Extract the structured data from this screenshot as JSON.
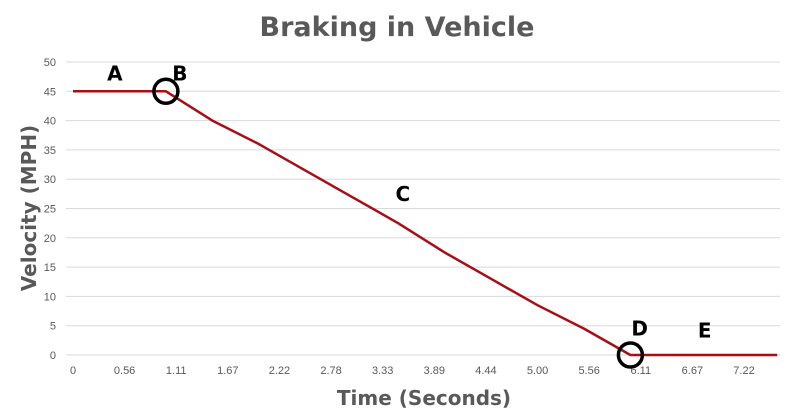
{
  "chart_data": {
    "type": "line",
    "title": "Braking in Vehicle",
    "xlabel": "Time (Seconds)",
    "ylabel": "Velocity (MPH)",
    "x_tick_labels": [
      "0",
      "0.56",
      "1.11",
      "1.67",
      "2.22",
      "2.78",
      "3.33",
      "3.89",
      "4.44",
      "5.00",
      "5.56",
      "6.11",
      "6.67",
      "7.22"
    ],
    "y_ticks": [
      0,
      5,
      10,
      15,
      20,
      25,
      30,
      35,
      40,
      45,
      50
    ],
    "ylim": [
      0,
      50
    ],
    "xlim": [
      0,
      7.6
    ],
    "grid": true,
    "series": [
      {
        "name": "Velocity",
        "color": "#a50f15",
        "x": [
          0,
          1.0,
          1.5,
          2.0,
          2.5,
          3.0,
          3.5,
          4.0,
          4.5,
          5.0,
          5.5,
          6.0,
          7.58
        ],
        "y": [
          45,
          45,
          40,
          36,
          31.5,
          27,
          22.5,
          17.5,
          13,
          8.5,
          4.5,
          0,
          0
        ]
      }
    ],
    "annotations": [
      {
        "label": "A",
        "x": 0.45,
        "y": 48
      },
      {
        "label": "B",
        "x": 1.15,
        "y": 48
      },
      {
        "label": "C",
        "x": 3.55,
        "y": 27.5
      },
      {
        "label": "D",
        "x": 6.1,
        "y": 4.5
      },
      {
        "label": "E",
        "x": 6.8,
        "y": 4.2
      }
    ],
    "markers": [
      {
        "x": 1.0,
        "y": 45
      },
      {
        "x": 6.0,
        "y": 0
      }
    ]
  }
}
